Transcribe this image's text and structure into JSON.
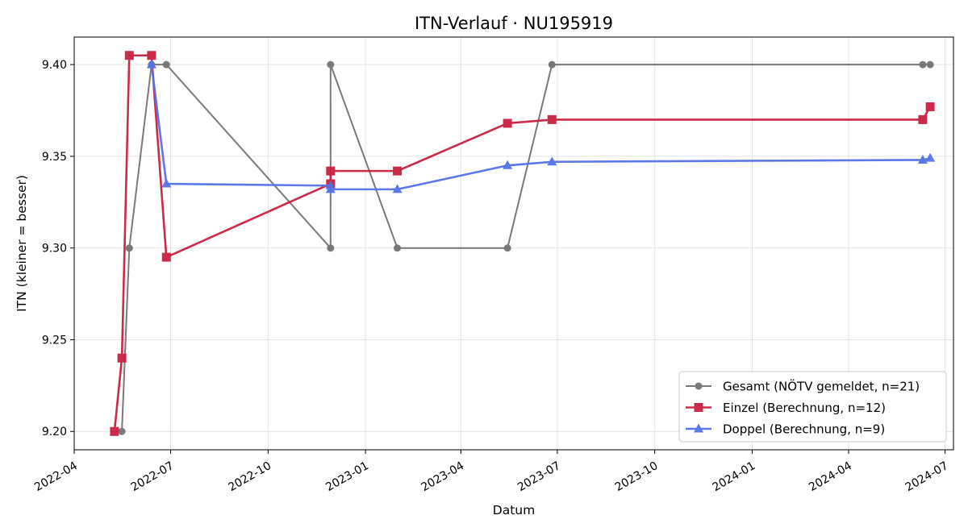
{
  "chart_data": {
    "type": "line",
    "title": "ITN-Verlauf · NU195919",
    "xlabel": "Datum",
    "ylabel": "ITN  (kleiner = besser)",
    "x_type": "date",
    "xlim": [
      "2022-04-01",
      "2024-07-09"
    ],
    "ylim": [
      9.19,
      9.415
    ],
    "x_ticks": [
      "2022-04-01",
      "2022-07-01",
      "2022-10-01",
      "2023-01-01",
      "2023-04-01",
      "2023-07-01",
      "2023-10-01",
      "2024-01-01",
      "2024-04-01",
      "2024-07-01"
    ],
    "x_tick_labels": [
      "2022-04",
      "2022-07",
      "2022-10",
      "2023-01",
      "2023-04",
      "2023-07",
      "2023-10",
      "2024-01",
      "2024-04",
      "2024-07"
    ],
    "y_ticks": [
      9.2,
      9.25,
      9.3,
      9.35,
      9.4
    ],
    "y_tick_labels": [
      "9.20",
      "9.25",
      "9.30",
      "9.35",
      "9.40"
    ],
    "grid": true,
    "legend_position": "bottom-right",
    "series": [
      {
        "name": "Gesamt (NÖTV gemeldet, n=21)",
        "color": "#555555",
        "marker": "circle",
        "points": [
          [
            "2022-05-16",
            9.2
          ],
          [
            "2022-05-23",
            9.3
          ],
          [
            "2022-06-13",
            9.4
          ],
          [
            "2022-06-27",
            9.4
          ],
          [
            "2022-11-29",
            9.3
          ],
          [
            "2022-11-29",
            9.4
          ],
          [
            "2023-01-31",
            9.3
          ],
          [
            "2023-05-15",
            9.3
          ],
          [
            "2023-06-26",
            9.4
          ],
          [
            "2024-06-10",
            9.4
          ],
          [
            "2024-06-17",
            9.4
          ]
        ]
      },
      {
        "name": "Einzel (Berechnung, n=12)",
        "color": "#c8203f",
        "marker": "square",
        "points": [
          [
            "2022-05-09",
            9.2
          ],
          [
            "2022-05-16",
            9.24
          ],
          [
            "2022-05-23",
            9.405
          ],
          [
            "2022-06-13",
            9.405
          ],
          [
            "2022-06-27",
            9.295
          ],
          [
            "2022-11-29",
            9.335
          ],
          [
            "2022-11-29",
            9.342
          ],
          [
            "2023-01-31",
            9.342
          ],
          [
            "2023-05-15",
            9.368
          ],
          [
            "2023-06-26",
            9.37
          ],
          [
            "2024-06-10",
            9.37
          ],
          [
            "2024-06-17",
            9.377
          ]
        ]
      },
      {
        "name": "Doppel (Berechnung, n=9)",
        "color": "#5470e8",
        "marker": "triangle",
        "points": [
          [
            "2022-06-13",
            9.4
          ],
          [
            "2022-06-27",
            9.335
          ],
          [
            "2022-11-29",
            9.334
          ],
          [
            "2022-11-29",
            9.332
          ],
          [
            "2023-01-31",
            9.332
          ],
          [
            "2023-05-15",
            9.345
          ],
          [
            "2023-06-26",
            9.347
          ],
          [
            "2024-06-10",
            9.348
          ],
          [
            "2024-06-17",
            9.349
          ]
        ]
      }
    ]
  }
}
